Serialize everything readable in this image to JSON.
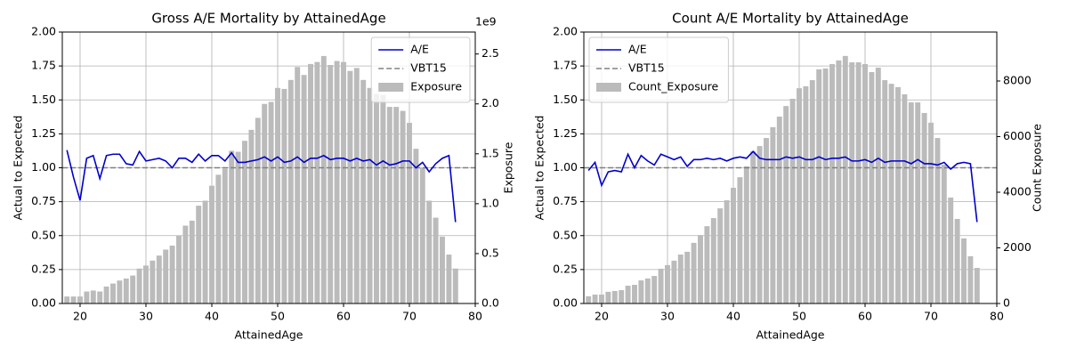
{
  "chart_data": [
    {
      "type": "bar_line",
      "title": "Gross A/E Mortality by AttainedAge",
      "xlabel": "AttainedAge",
      "ylabel": "Actual to Expected",
      "y2label": "Exposure",
      "y2_offset": "1e9",
      "x": [
        18,
        19,
        20,
        21,
        22,
        23,
        24,
        25,
        26,
        27,
        28,
        29,
        30,
        31,
        32,
        33,
        34,
        35,
        36,
        37,
        38,
        39,
        40,
        41,
        42,
        43,
        44,
        45,
        46,
        47,
        48,
        49,
        50,
        51,
        52,
        53,
        54,
        55,
        56,
        57,
        58,
        59,
        60,
        61,
        62,
        63,
        64,
        65,
        66,
        67,
        68,
        69,
        70,
        71,
        72,
        73,
        74,
        75,
        76,
        77
      ],
      "xlim": [
        17.3,
        80
      ],
      "xticks": [
        20,
        30,
        40,
        50,
        60,
        70,
        80
      ],
      "ylim": [
        0,
        2
      ],
      "yticks": [
        {
          "value": 0,
          "label": "0.00"
        },
        {
          "value": 0.25,
          "label": "0.25"
        },
        {
          "value": 0.5,
          "label": "0.50"
        },
        {
          "value": 0.75,
          "label": "0.75"
        },
        {
          "value": 1,
          "label": "1.00"
        },
        {
          "value": 1.25,
          "label": "1.25"
        },
        {
          "value": 1.5,
          "label": "1.50"
        },
        {
          "value": 1.75,
          "label": "1.75"
        },
        {
          "value": 2,
          "label": "2.00"
        }
      ],
      "y2lim": [
        0,
        2720000000
      ],
      "y2ticks": [
        {
          "value": 0,
          "label": "0.0"
        },
        {
          "value": 500000000,
          "label": "0.5"
        },
        {
          "value": 1000000000,
          "label": "1.0"
        },
        {
          "value": 1500000000,
          "label": "1.5"
        },
        {
          "value": 2000000000,
          "label": "2.0"
        },
        {
          "value": 2500000000,
          "label": "2.5"
        }
      ],
      "grid": true,
      "legend": "upper right",
      "series": [
        {
          "name": "A/E",
          "type": "line",
          "color": "#0000cc",
          "values": [
            1.13,
            0.93,
            0.76,
            1.07,
            1.09,
            0.92,
            1.09,
            1.1,
            1.1,
            1.03,
            1.02,
            1.12,
            1.05,
            1.06,
            1.07,
            1.05,
            1.0,
            1.07,
            1.07,
            1.04,
            1.1,
            1.05,
            1.09,
            1.09,
            1.05,
            1.11,
            1.04,
            1.04,
            1.05,
            1.06,
            1.08,
            1.05,
            1.08,
            1.04,
            1.05,
            1.08,
            1.04,
            1.07,
            1.07,
            1.09,
            1.06,
            1.07,
            1.07,
            1.05,
            1.07,
            1.05,
            1.06,
            1.02,
            1.05,
            1.02,
            1.03,
            1.05,
            1.05,
            1.0,
            1.04,
            0.97,
            1.03,
            1.07,
            1.09,
            0.6
          ]
        },
        {
          "name": "Exposure",
          "type": "bar",
          "axis": "y2",
          "color": "#bbbbbb",
          "values": [
            70000000,
            70000000,
            70000000,
            120000000,
            130000000,
            120000000,
            170000000,
            200000000,
            230000000,
            250000000,
            280000000,
            350000000,
            380000000,
            430000000,
            480000000,
            540000000,
            580000000,
            680000000,
            780000000,
            830000000,
            980000000,
            1030000000,
            1180000000,
            1290000000,
            1350000000,
            1530000000,
            1520000000,
            1630000000,
            1740000000,
            1860000000,
            2000000000,
            2020000000,
            2160000000,
            2150000000,
            2240000000,
            2370000000,
            2290000000,
            2400000000,
            2420000000,
            2480000000,
            2390000000,
            2430000000,
            2420000000,
            2330000000,
            2360000000,
            2240000000,
            2160000000,
            2100000000,
            2090000000,
            1970000000,
            1970000000,
            1930000000,
            1810000000,
            1550000000,
            1360000000,
            1030000000,
            860000000,
            670000000,
            490000000,
            350000000
          ]
        }
      ],
      "hlines": [
        {
          "name": "VBT15",
          "value": 1,
          "color": "#808080"
        }
      ]
    },
    {
      "type": "bar_line",
      "title": "Count A/E Mortality by AttainedAge",
      "xlabel": "AttainedAge",
      "ylabel": "Actual to Expected",
      "y2label": "Count Exposure",
      "x": [
        18,
        19,
        20,
        21,
        22,
        23,
        24,
        25,
        26,
        27,
        28,
        29,
        30,
        31,
        32,
        33,
        34,
        35,
        36,
        37,
        38,
        39,
        40,
        41,
        42,
        43,
        44,
        45,
        46,
        47,
        48,
        49,
        50,
        51,
        52,
        53,
        54,
        55,
        56,
        57,
        58,
        59,
        60,
        61,
        62,
        63,
        64,
        65,
        66,
        67,
        68,
        69,
        70,
        71,
        72,
        73,
        74,
        75,
        76,
        77
      ],
      "xlim": [
        17.3,
        80
      ],
      "xticks": [
        20,
        30,
        40,
        50,
        60,
        70,
        80
      ],
      "ylim": [
        0,
        2
      ],
      "yticks": [
        {
          "value": 0,
          "label": "0.00"
        },
        {
          "value": 0.25,
          "label": "0.25"
        },
        {
          "value": 0.5,
          "label": "0.50"
        },
        {
          "value": 0.75,
          "label": "0.75"
        },
        {
          "value": 1,
          "label": "1.00"
        },
        {
          "value": 1.25,
          "label": "1.25"
        },
        {
          "value": 1.5,
          "label": "1.50"
        },
        {
          "value": 1.75,
          "label": "1.75"
        },
        {
          "value": 2,
          "label": "2.00"
        }
      ],
      "y2lim": [
        0,
        9760
      ],
      "y2ticks": [
        0,
        2000,
        4000,
        6000,
        8000
      ],
      "grid": true,
      "legend": "upper left",
      "series": [
        {
          "name": "A/E",
          "type": "line",
          "color": "#0000cc",
          "values": [
            0.98,
            1.04,
            0.87,
            0.97,
            0.98,
            0.97,
            1.1,
            1.0,
            1.09,
            1.05,
            1.02,
            1.1,
            1.08,
            1.06,
            1.08,
            1.01,
            1.06,
            1.06,
            1.07,
            1.06,
            1.07,
            1.05,
            1.07,
            1.08,
            1.07,
            1.12,
            1.07,
            1.06,
            1.06,
            1.06,
            1.08,
            1.07,
            1.08,
            1.06,
            1.06,
            1.08,
            1.06,
            1.07,
            1.07,
            1.08,
            1.05,
            1.05,
            1.06,
            1.04,
            1.07,
            1.04,
            1.05,
            1.05,
            1.05,
            1.03,
            1.06,
            1.03,
            1.03,
            1.02,
            1.04,
            0.99,
            1.03,
            1.04,
            1.03,
            0.6
          ]
        },
        {
          "name": "Count_Exposure",
          "type": "bar",
          "axis": "y2",
          "color": "#bbbbbb",
          "values": [
            260,
            320,
            320,
            420,
            450,
            480,
            640,
            670,
            830,
            900,
            990,
            1250,
            1380,
            1540,
            1760,
            1860,
            2180,
            2460,
            2780,
            3070,
            3420,
            3710,
            4160,
            4540,
            4930,
            5470,
            5660,
            5950,
            6340,
            6720,
            7100,
            7360,
            7740,
            7810,
            8030,
            8420,
            8450,
            8610,
            8740,
            8900,
            8670,
            8670,
            8610,
            8320,
            8480,
            8030,
            7900,
            7780,
            7520,
            7230,
            7230,
            6850,
            6500,
            5950,
            4990,
            3810,
            3040,
            2340,
            1700,
            1280
          ]
        }
      ],
      "hlines": [
        {
          "name": "VBT15",
          "value": 1,
          "color": "#808080"
        }
      ]
    }
  ]
}
